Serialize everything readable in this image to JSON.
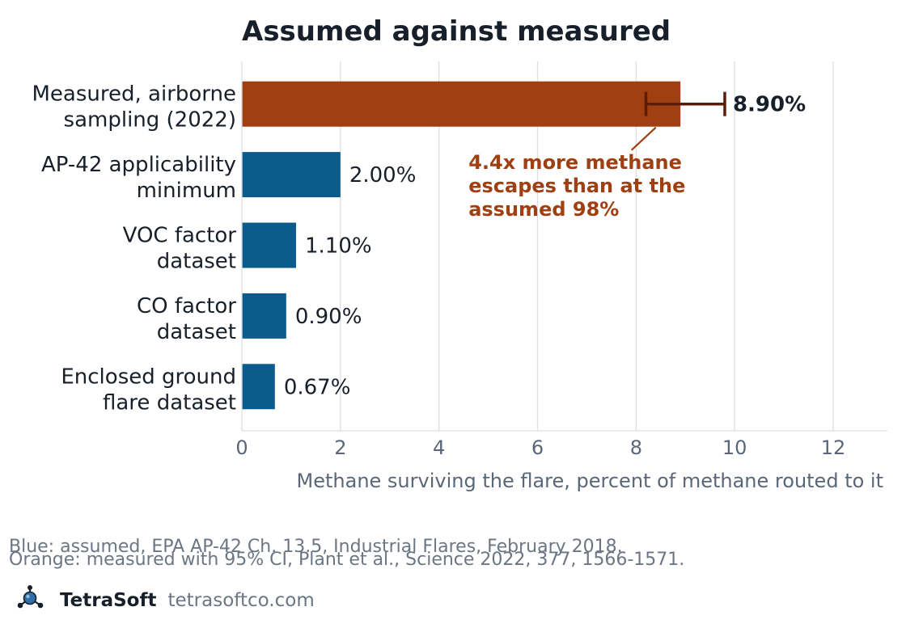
{
  "chart_data": {
    "type": "bar",
    "orientation": "horizontal",
    "title": "Assumed against measured",
    "xlabel": "Methane surviving the flare, percent of methane routed to it",
    "ylabel": "",
    "xlim": [
      0,
      13.1
    ],
    "xticks": [
      0,
      2,
      4,
      6,
      8,
      10,
      12
    ],
    "grid": "vertical",
    "categories": [
      "Measured, airborne sampling (2022)",
      "AP-42 applicability minimum",
      "VOC factor dataset",
      "CO factor dataset",
      "Enclosed ground flare dataset"
    ],
    "category_lines": [
      [
        "Measured, airborne",
        "sampling (2022)"
      ],
      [
        "AP-42 applicability",
        "minimum"
      ],
      [
        "VOC factor",
        "dataset"
      ],
      [
        "CO factor",
        "dataset"
      ],
      [
        "Enclosed ground",
        "flare dataset"
      ]
    ],
    "values": [
      8.9,
      2.0,
      1.1,
      0.9,
      0.67
    ],
    "value_labels": [
      "8.90%",
      "2.00%",
      "1.10%",
      "0.90%",
      "0.67%"
    ],
    "bar_groups": [
      "measured",
      "assumed",
      "assumed",
      "assumed",
      "assumed"
    ],
    "error_bar": {
      "category_index": 0,
      "low": 8.2,
      "high": 9.8
    },
    "annotation": {
      "lines": [
        "4.4x more methane",
        "escapes than at the",
        "assumed 98%"
      ],
      "points_to_category_index": 0,
      "arrow_tip_value": 8.4,
      "text_x_value": 4.6
    },
    "colors": {
      "assumed": "#0b5c8c",
      "measured": "#a04012",
      "error_bar": "#5a1d0a",
      "grid": "#dcdfe3",
      "annotation": "#a04012"
    }
  },
  "footer": {
    "line1": "Blue: assumed, EPA AP-42 Ch. 13.5, Industrial Flares, February 2018.",
    "line2": "Orange: measured with 95% CI, Plant et al., Science 2022, 377, 1566-1571."
  },
  "brand": {
    "name": "TetraSoft",
    "url": "tetrasoftco.com",
    "logo_icon": "molecule-icon"
  }
}
